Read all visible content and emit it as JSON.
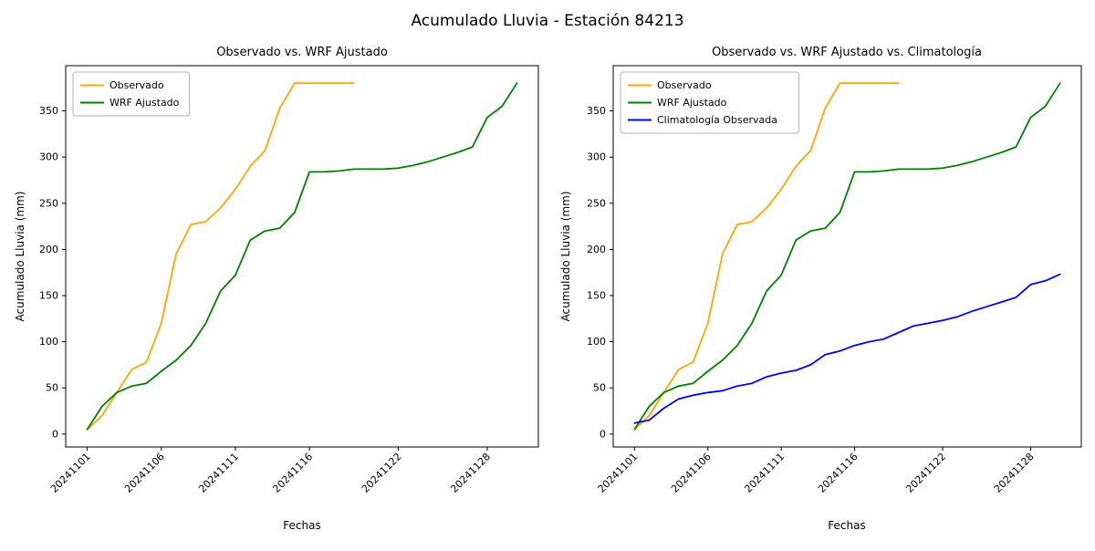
{
  "figure": {
    "title": "Acumulado Lluvia - Estación 84213"
  },
  "chart_data": [
    {
      "type": "line",
      "title": "Observado vs. WRF Ajustado",
      "xlabel": "Fechas",
      "ylabel": "Acumulado Lluvia (mm)",
      "x_dates": [
        "20241101",
        "20241102",
        "20241103",
        "20241104",
        "20241105",
        "20241106",
        "20241107",
        "20241108",
        "20241109",
        "20241110",
        "20241111",
        "20241112",
        "20241113",
        "20241114",
        "20241115",
        "20241116",
        "20241117",
        "20241118",
        "20241119",
        "20241120",
        "20241121",
        "20241122",
        "20241123",
        "20241124",
        "20241125",
        "20241126",
        "20241127",
        "20241128",
        "20241129",
        "20241130"
      ],
      "xticks": {
        "indices": [
          0,
          5,
          10,
          15,
          21,
          27
        ],
        "labels": [
          "20241101",
          "20241106",
          "20241111",
          "20241116",
          "20241122",
          "20241128"
        ]
      },
      "yticks": [
        0,
        50,
        100,
        150,
        200,
        250,
        300,
        350
      ],
      "ylim": [
        -14,
        399
      ],
      "grid": false,
      "legend_position": "upper-left",
      "series": [
        {
          "name": "Observado",
          "color": "#ffa500",
          "values": [
            5,
            20,
            45,
            70,
            78,
            120,
            195,
            227,
            230,
            245,
            265,
            290,
            307,
            353,
            380,
            380,
            380,
            380,
            380
          ]
        },
        {
          "name": "WRF Ajustado",
          "color": "#008000",
          "values": [
            5,
            30,
            45,
            52,
            55,
            68,
            80,
            96,
            120,
            155,
            172,
            210,
            220,
            223,
            240,
            284,
            284,
            285,
            287,
            287,
            287,
            288,
            291,
            295,
            300,
            305,
            311,
            343,
            355,
            380
          ]
        }
      ]
    },
    {
      "type": "line",
      "title": "Observado vs. WRF Ajustado vs. Climatología",
      "xlabel": "Fechas",
      "ylabel": "Acumulado Lluvia (mm)",
      "x_dates": [
        "20241101",
        "20241102",
        "20241103",
        "20241104",
        "20241105",
        "20241106",
        "20241107",
        "20241108",
        "20241109",
        "20241110",
        "20241111",
        "20241112",
        "20241113",
        "20241114",
        "20241115",
        "20241116",
        "20241117",
        "20241118",
        "20241119",
        "20241120",
        "20241121",
        "20241122",
        "20241123",
        "20241124",
        "20241125",
        "20241126",
        "20241127",
        "20241128",
        "20241129",
        "20241130"
      ],
      "xticks": {
        "indices": [
          0,
          5,
          10,
          15,
          21,
          27
        ],
        "labels": [
          "20241101",
          "20241106",
          "20241111",
          "20241116",
          "20241122",
          "20241128"
        ]
      },
      "yticks": [
        0,
        50,
        100,
        150,
        200,
        250,
        300,
        350
      ],
      "ylim": [
        -14,
        399
      ],
      "grid": false,
      "legend_position": "upper-left",
      "series": [
        {
          "name": "Observado",
          "color": "#ffa500",
          "values": [
            5,
            20,
            45,
            70,
            78,
            120,
            195,
            227,
            230,
            245,
            265,
            290,
            307,
            353,
            380,
            380,
            380,
            380,
            380
          ]
        },
        {
          "name": "WRF Ajustado",
          "color": "#008000",
          "values": [
            5,
            30,
            45,
            52,
            55,
            68,
            80,
            96,
            120,
            155,
            172,
            210,
            220,
            223,
            240,
            284,
            284,
            285,
            287,
            287,
            287,
            288,
            291,
            295,
            300,
            305,
            311,
            343,
            355,
            380
          ]
        },
        {
          "name": "Climatología Observada",
          "color": "#0000ff",
          "values": [
            12,
            15,
            28,
            38,
            42,
            45,
            47,
            52,
            55,
            62,
            66,
            69,
            75,
            86,
            90,
            96,
            100,
            103,
            110,
            117,
            120,
            123,
            127,
            133,
            138,
            143,
            148,
            162,
            166,
            173
          ]
        }
      ]
    }
  ]
}
